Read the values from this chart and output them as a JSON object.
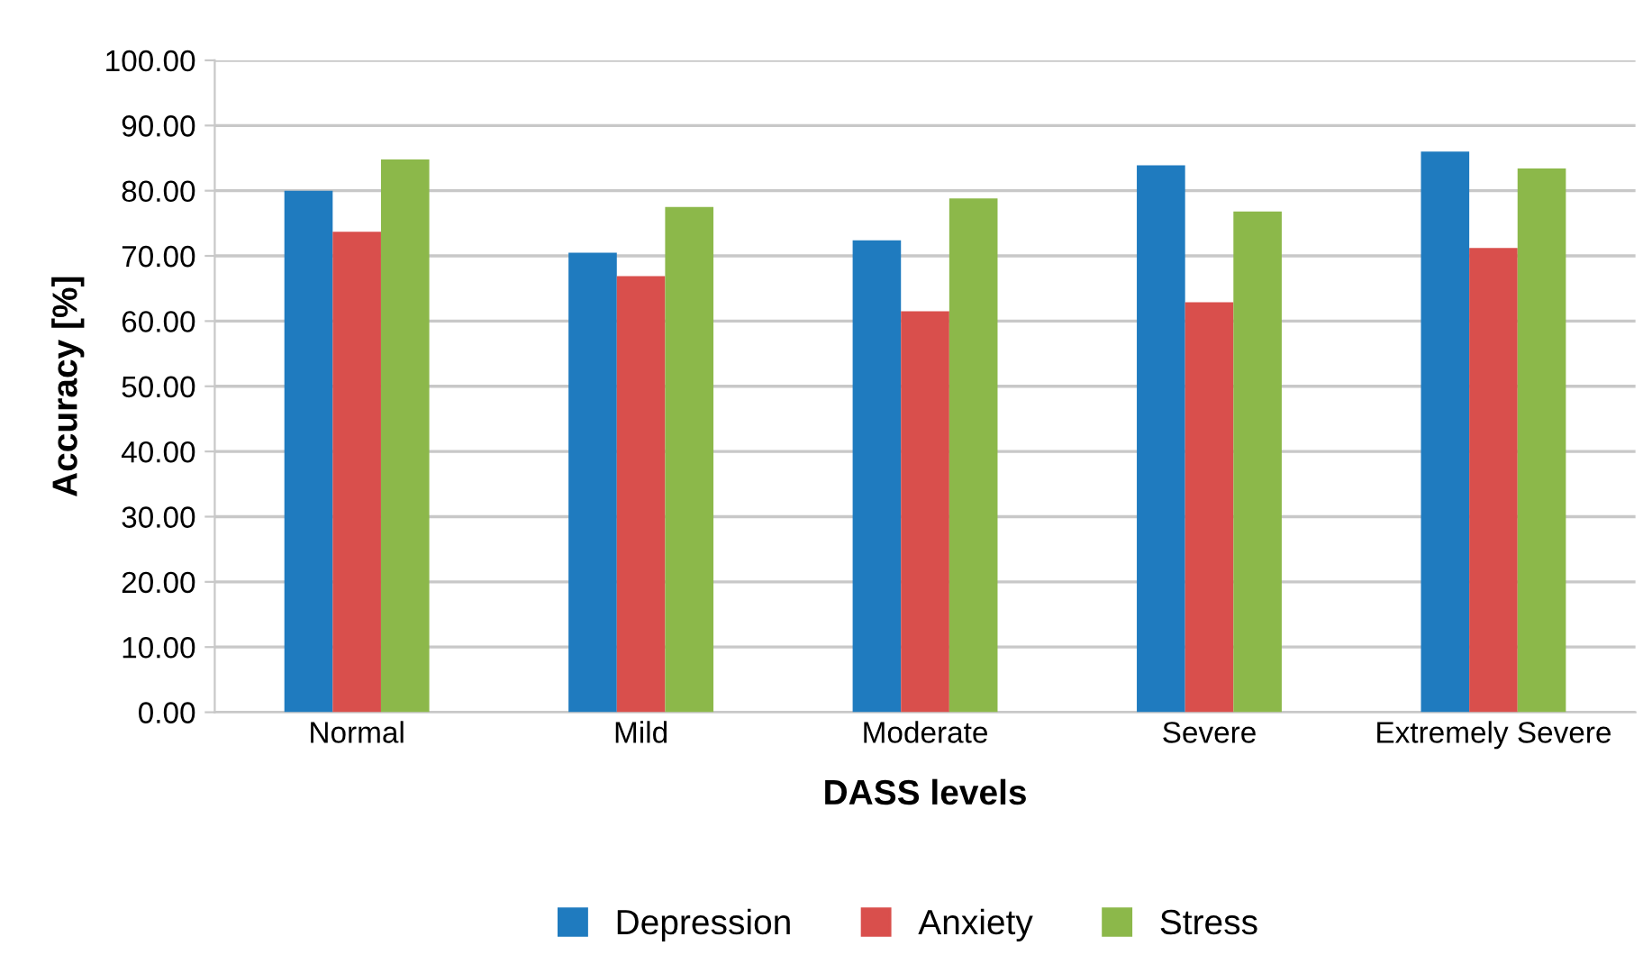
{
  "chart_data": {
    "type": "bar",
    "xlabel": "DASS levels",
    "ylabel": "Accuracy [%]",
    "categories": [
      "Normal",
      "Mild",
      "Moderate",
      "Severe",
      "Extremely Severe"
    ],
    "series": [
      {
        "name": "Depression",
        "color": "#1f7bbf",
        "values": [
          80.0,
          70.5,
          72.4,
          83.9,
          86.0
        ]
      },
      {
        "name": "Anxiety",
        "color": "#d94f4c",
        "values": [
          73.7,
          66.9,
          61.5,
          62.9,
          71.2
        ]
      },
      {
        "name": "Stress",
        "color": "#8cb84a",
        "values": [
          84.8,
          77.5,
          78.8,
          76.8,
          83.4
        ]
      }
    ],
    "ylim": [
      0,
      100
    ],
    "yticks": [
      {
        "value": 0,
        "label": "0.00"
      },
      {
        "value": 10,
        "label": "10.00"
      },
      {
        "value": 20,
        "label": "20.00"
      },
      {
        "value": 30,
        "label": "30.00"
      },
      {
        "value": 40,
        "label": "40.00"
      },
      {
        "value": 50,
        "label": "50.00"
      },
      {
        "value": 60,
        "label": "60.00"
      },
      {
        "value": 70,
        "label": "70.00"
      },
      {
        "value": 80,
        "label": "80.00"
      },
      {
        "value": 90,
        "label": "90.00"
      },
      {
        "value": 100,
        "label": "100.00"
      }
    ],
    "grid": "y",
    "legend": "bottom"
  }
}
